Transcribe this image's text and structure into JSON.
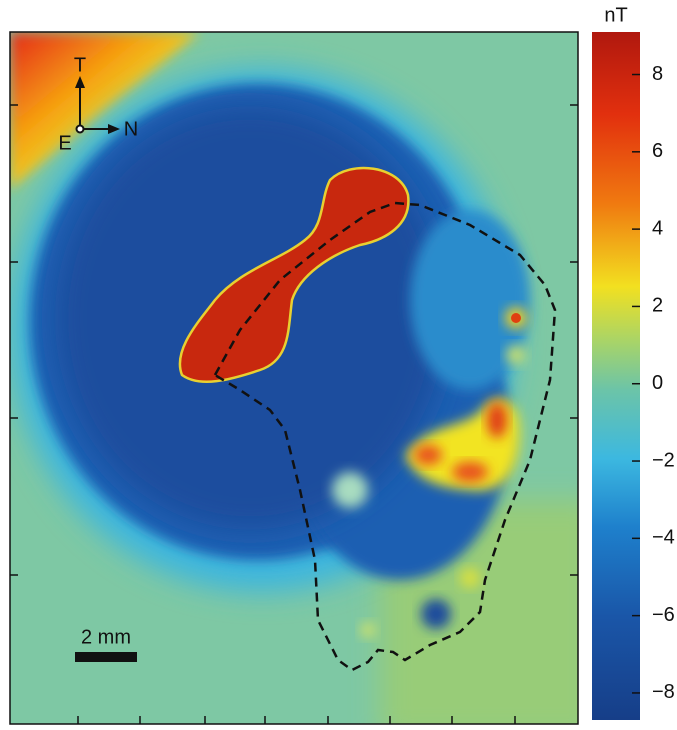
{
  "chart_data": {
    "type": "heatmap",
    "colorbar_label": "nT",
    "clim": [
      -8.7,
      9.1
    ],
    "cticks": [
      8,
      6,
      4,
      2,
      0,
      {
        "value": -2,
        "label": "−2"
      },
      {
        "value": -4,
        "label": "−4"
      },
      {
        "value": -6,
        "label": "−6"
      },
      {
        "value": -8,
        "label": "−8"
      }
    ],
    "annotations": {
      "up": "T",
      "left": "E",
      "right": "N",
      "scale_bar": "2 mm"
    }
  }
}
